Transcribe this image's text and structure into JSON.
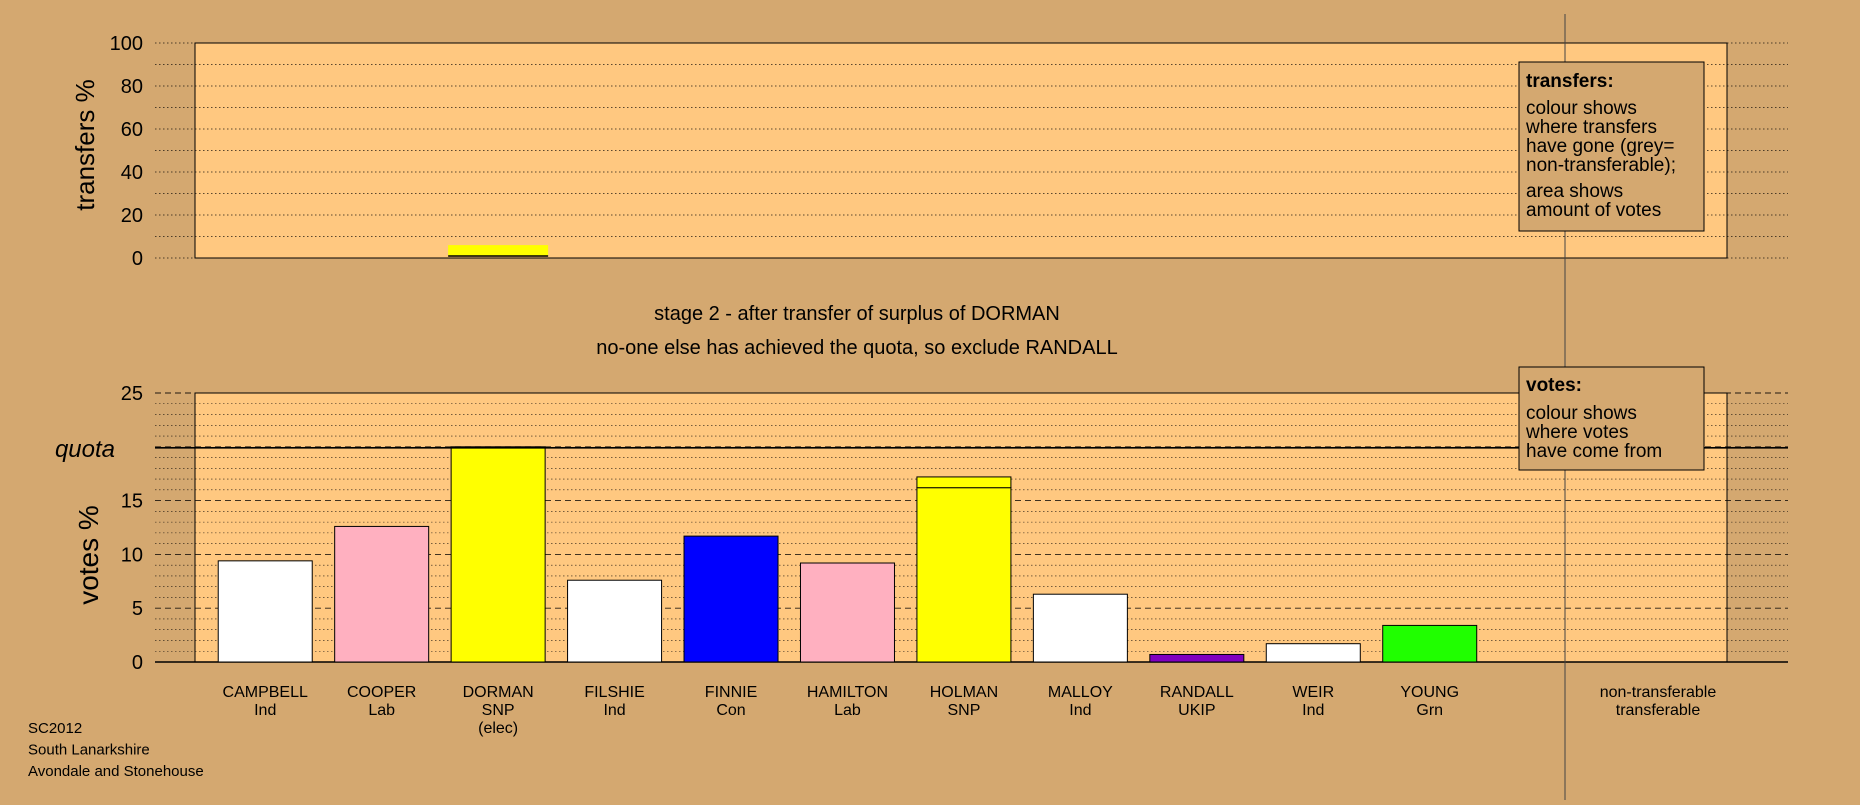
{
  "chart_data": [
    {
      "id": "transfers",
      "type": "bar",
      "ylabel": "transfers %",
      "ylim": [
        0,
        100
      ],
      "yticks": [
        0,
        20,
        40,
        60,
        80,
        100
      ],
      "categories": [
        "CAMPBELL",
        "COOPER",
        "DORMAN",
        "FILSHIE",
        "FINNIE",
        "HAMILTON",
        "HOLMAN",
        "MALLOY",
        "RANDALL",
        "WEIR",
        "YOUNG",
        "non-transferable"
      ],
      "transfers_from": "DORMAN",
      "values": [
        0,
        0,
        6,
        0,
        0,
        0,
        0,
        0,
        0,
        0,
        0,
        0
      ],
      "colors": [
        "#ffff00",
        "#ffff00",
        "#ffff00",
        "#ffff00",
        "#ffff00",
        "#ffff00",
        "#ffff00",
        "#ffff00",
        "#ffff00",
        "#ffff00",
        "#ffff00",
        "#ffff00"
      ],
      "legend": {
        "title": "transfers:",
        "lines_a": [
          "colour shows",
          "where transfers",
          "have gone (grey=",
          "non-transferable);"
        ],
        "lines_b": [
          "area shows",
          "amount of votes"
        ]
      }
    },
    {
      "id": "votes",
      "type": "bar",
      "ylabel": "votes %",
      "ylim": [
        0,
        25
      ],
      "yticks": [
        0,
        5,
        10,
        15,
        20,
        25
      ],
      "quota": 20,
      "quota_label": "quota",
      "categories": [
        "CAMPBELL",
        "COOPER",
        "DORMAN",
        "FILSHIE",
        "FINNIE",
        "HAMILTON",
        "HOLMAN",
        "MALLOY",
        "RANDALL",
        "WEIR",
        "YOUNG",
        "non-transferable"
      ],
      "parties": [
        "Ind",
        "Lab",
        "SNP",
        "Ind",
        "Con",
        "Lab",
        "SNP",
        "Ind",
        "UKIP",
        "Ind",
        "Grn",
        "transferable"
      ],
      "notes": [
        "",
        "",
        "(elec)",
        "",
        "",
        "",
        "",
        "",
        "",
        "",
        "",
        ""
      ],
      "series": [
        {
          "values": [
            9.4,
            12.6,
            20.0,
            7.6,
            11.7,
            9.2,
            16.2,
            6.3,
            0.7,
            1.7,
            3.4,
            0
          ]
        },
        {
          "values": [
            0,
            0,
            0,
            0,
            0,
            0,
            1.0,
            0,
            0,
            0,
            0,
            0
          ]
        }
      ],
      "colors": [
        "#ffffff",
        "#ffb0c0",
        "#ffff00",
        "#ffffff",
        "#0000ff",
        "#ffb0c0",
        "#ffff00",
        "#ffffff",
        "#8000c0",
        "#ffffff",
        "#20ff00",
        "#999999"
      ],
      "legend": {
        "title": "votes:",
        "lines": [
          "colour shows",
          "where votes",
          "have come from"
        ]
      }
    }
  ],
  "stage": {
    "line1": "stage 2 - after transfer of surplus of DORMAN",
    "line2": "no-one else has achieved the quota, so exclude RANDALL"
  },
  "footer": [
    "SC2012",
    "South Lanarkshire",
    "Avondale and Stonehouse"
  ],
  "colors": {
    "background": "#d4a870",
    "plot_area": "#ffc880",
    "axis": "#000000"
  }
}
